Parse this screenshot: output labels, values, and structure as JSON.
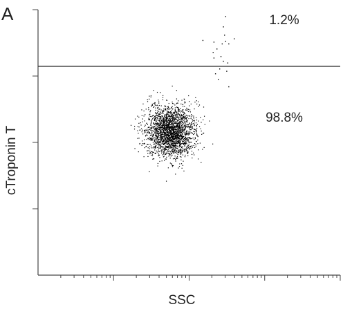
{
  "panel_label": "A",
  "chart_data": {
    "type": "scatter",
    "title": "",
    "xlabel": "SSC",
    "ylabel": "cTroponin T",
    "x_scale": "log",
    "y_scale": "log",
    "xlim": [
      1,
      10000
    ],
    "ylim": [
      1,
      10000
    ],
    "grid": false,
    "gate": {
      "type": "horizontal_line",
      "y": 1400,
      "regions": [
        {
          "position": "upper",
          "percent_label": "1.2%"
        },
        {
          "position": "lower",
          "percent_label": "98.8%"
        }
      ]
    },
    "series": [
      {
        "marker_color": "#000000",
        "main_population": {
          "center_x": 55,
          "center_y": 150,
          "point_count": 2300
        },
        "upper_scatter_points": [
          [
            300,
            8000
          ],
          [
            210,
            3300
          ],
          [
            150,
            3500
          ],
          [
            280,
            5600
          ],
          [
            300,
            3400
          ],
          [
            330,
            3100
          ],
          [
            390,
            3700
          ],
          [
            230,
            2600
          ],
          [
            210,
            1900
          ],
          [
            260,
            2000
          ],
          [
            220,
            1100
          ],
          [
            280,
            1700
          ],
          [
            250,
            1300
          ],
          [
            205,
            2300
          ],
          [
            290,
            4200
          ],
          [
            270,
            3100
          ],
          [
            320,
            1600
          ],
          [
            240,
            900
          ],
          [
            330,
            700
          ],
          [
            310,
            1200
          ]
        ]
      }
    ]
  }
}
